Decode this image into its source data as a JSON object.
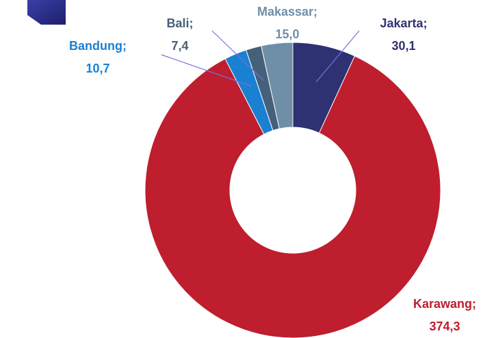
{
  "chart_data": {
    "type": "donut",
    "categories": [
      "Jakarta",
      "Karawang",
      "Bandung",
      "Bali",
      "Makassar"
    ],
    "values": [
      30.1,
      374.3,
      10.7,
      7.4,
      15.0
    ],
    "value_labels": [
      "30,1",
      "374,3",
      "10,7",
      "7,4",
      "15,0"
    ],
    "separator": ";",
    "colors": [
      "#2e3272",
      "#be1e2d",
      "#1a80d2",
      "#44607a",
      "#6f8fa8"
    ]
  }
}
